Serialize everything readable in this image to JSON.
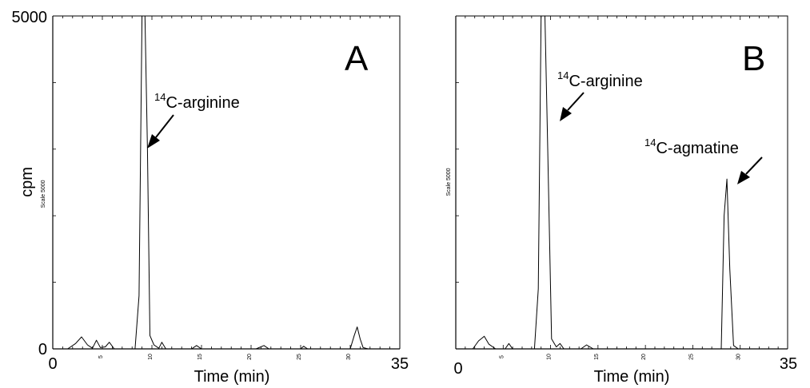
{
  "chart_data": [
    {
      "type": "line",
      "panel_label": "A",
      "xlabel": "Time (min)",
      "ylabel": "cpm",
      "scale_label": "Scale 5000",
      "xlim": [
        0,
        35
      ],
      "ylim": [
        0,
        5000
      ],
      "x_major_tick_labels": [
        "0",
        "35"
      ],
      "x_minor_tick_labels": [
        "5",
        "10",
        "15",
        "20",
        "25",
        "30"
      ],
      "y_tick_labels": [
        "5000",
        "0"
      ],
      "annotations": [
        {
          "isotope": "14",
          "label": "C-arginine",
          "target_x": 9.4,
          "target_y": 3000
        }
      ],
      "series": [
        {
          "x": [
            0,
            1.5,
            2.3,
            2.9,
            3.5,
            4.0,
            4.4,
            4.8,
            5.3,
            5.7,
            6.2,
            7.0,
            8.3,
            8.7,
            9.0,
            9.3,
            9.55,
            9.8,
            10.2,
            10.7,
            11.0,
            11.4,
            12.5,
            14.0,
            14.5,
            15.0,
            16.0,
            20.5,
            21.3,
            21.8,
            22.5,
            25.0,
            25.3,
            25.7,
            30.0,
            30.4,
            30.7,
            31.0,
            31.3,
            31.8,
            35.0
          ],
          "y": [
            0,
            0,
            80,
            180,
            60,
            10,
            130,
            20,
            30,
            100,
            0,
            0,
            0,
            800,
            5000,
            5000,
            3000,
            200,
            60,
            10,
            100,
            0,
            0,
            0,
            50,
            0,
            0,
            0,
            50,
            0,
            0,
            0,
            40,
            0,
            0,
            200,
            330,
            150,
            20,
            0,
            0
          ]
        }
      ]
    },
    {
      "type": "line",
      "panel_label": "B",
      "xlabel": "Time (min)",
      "ylabel": "",
      "scale_label": "Scale 5000",
      "xlim": [
        0,
        35
      ],
      "ylim": [
        0,
        5000
      ],
      "x_major_tick_labels": [
        "0",
        "35"
      ],
      "x_minor_tick_labels": [
        "5",
        "10",
        "15",
        "20",
        "25",
        "30"
      ],
      "y_tick_labels": [],
      "annotations": [
        {
          "isotope": "14",
          "label": "C-arginine",
          "target_x": 10.0,
          "target_y": 3500
        },
        {
          "isotope": "14",
          "label": "C-agmatine",
          "target_x": 29.2,
          "target_y": 2550
        }
      ],
      "series": [
        {
          "x": [
            0,
            1.8,
            2.4,
            3.0,
            3.5,
            4.2,
            5.2,
            5.6,
            6.0,
            8.3,
            8.7,
            9.0,
            9.4,
            9.7,
            10.1,
            10.6,
            11.0,
            11.4,
            13.2,
            13.8,
            14.5,
            15.5,
            28.0,
            28.3,
            28.6,
            28.9,
            29.3,
            29.8,
            35.0
          ],
          "y": [
            0,
            0,
            120,
            190,
            70,
            0,
            0,
            80,
            0,
            0,
            900,
            5000,
            5000,
            3000,
            150,
            30,
            80,
            0,
            0,
            60,
            0,
            0,
            0,
            2000,
            2550,
            1200,
            50,
            0,
            0
          ]
        }
      ]
    }
  ]
}
